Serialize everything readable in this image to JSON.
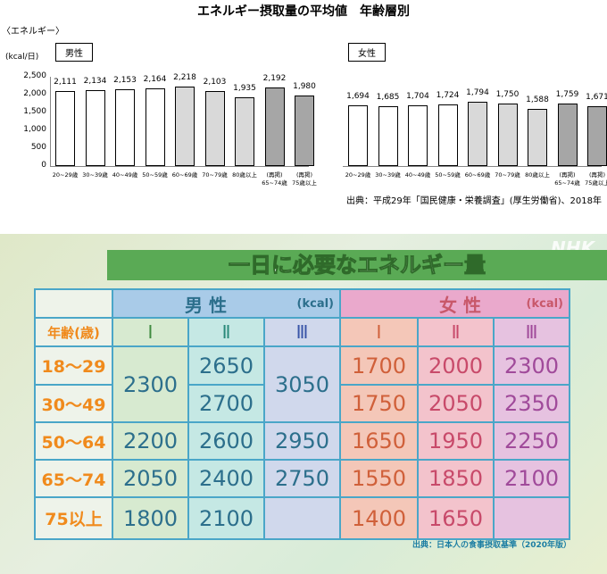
{
  "chart_data": [
    {
      "type": "bar",
      "title": "エネルギー摂取量の平均値　年齢層別",
      "ylabel_top": "〈エネルギー〉",
      "unit": "(kcal/日)",
      "panel": "男性",
      "categories": [
        "20~29歳",
        "30~39歳",
        "40~49歳",
        "50~59歳",
        "60~69歳",
        "70~79歳",
        "80歳以上",
        "(再掲)\n65~74歳",
        "(再掲)\n75歳以上"
      ],
      "values": [
        2111,
        2134,
        2153,
        2164,
        2218,
        2103,
        1935,
        2192,
        1980
      ],
      "value_labels": [
        "2,111",
        "2,134",
        "2,153",
        "2,164",
        "2,218",
        "2,103",
        "1,935",
        "2,192",
        "1,980"
      ],
      "ylim": [
        0,
        2500
      ],
      "yticks": [
        "0",
        "500",
        "1,000",
        "1,500",
        "2,000",
        "2,500"
      ],
      "bar_colors": [
        "#ffffff",
        "#ffffff",
        "#ffffff",
        "#ffffff",
        "#d9d9d9",
        "#d9d9d9",
        "#d9d9d9",
        "#a6a6a6",
        "#a6a6a6"
      ],
      "grid": false
    },
    {
      "type": "bar",
      "panel": "女性",
      "categories": [
        "20~29歳",
        "30~39歳",
        "40~49歳",
        "50~59歳",
        "60~69歳",
        "70~79歳",
        "80歳以上",
        "(再掲)\n65~74歳",
        "(再掲)\n75歳以上"
      ],
      "values": [
        1694,
        1685,
        1704,
        1724,
        1794,
        1750,
        1588,
        1759,
        1671
      ],
      "value_labels": [
        "1,694",
        "1,685",
        "1,704",
        "1,724",
        "1,794",
        "1,750",
        "1,588",
        "1,759",
        "1,671"
      ],
      "ylim": [
        0,
        2500
      ],
      "bar_colors": [
        "#ffffff",
        "#ffffff",
        "#ffffff",
        "#ffffff",
        "#d9d9d9",
        "#d9d9d9",
        "#d9d9d9",
        "#a6a6a6",
        "#a6a6a6"
      ],
      "grid": false
    }
  ],
  "source_top": "出典：平成29年「国民健康・栄養調査」(厚生労働省)、2018年",
  "tv": {
    "logo": "NHK",
    "title": "一日に必要なエネルギー量",
    "male": "男 性",
    "female": "女 性",
    "kcal": "(kcal)",
    "age_header": "年齢(歳)",
    "levels": [
      "Ⅰ",
      "Ⅱ",
      "Ⅲ"
    ],
    "rows": [
      {
        "age": "18～29",
        "m": [
          "2300",
          "2650",
          "3050"
        ],
        "f": [
          "1700",
          "2000",
          "2300"
        ]
      },
      {
        "age": "30～49",
        "m": [
          "2300",
          "2700",
          "3050"
        ],
        "f": [
          "1750",
          "2050",
          "2350"
        ]
      },
      {
        "age": "50～64",
        "m": [
          "2200",
          "2600",
          "2950"
        ],
        "f": [
          "1650",
          "1950",
          "2250"
        ]
      },
      {
        "age": "65～74",
        "m": [
          "2050",
          "2400",
          "2750"
        ],
        "f": [
          "1550",
          "1850",
          "2100"
        ]
      },
      {
        "age": "75以上",
        "m": [
          "1800",
          "2100",
          ""
        ],
        "f": [
          "1400",
          "1650",
          ""
        ]
      }
    ],
    "source": "出典：日本人の食事摂取基準（2020年版）",
    "colors": {
      "male_header": "#a9cbe8",
      "female_header": "#eaa9cc",
      "age_text": "#f08a1c",
      "male_text": "#2c6f8c",
      "female_text": "#c8586a",
      "border": "#4aa6c8"
    }
  }
}
